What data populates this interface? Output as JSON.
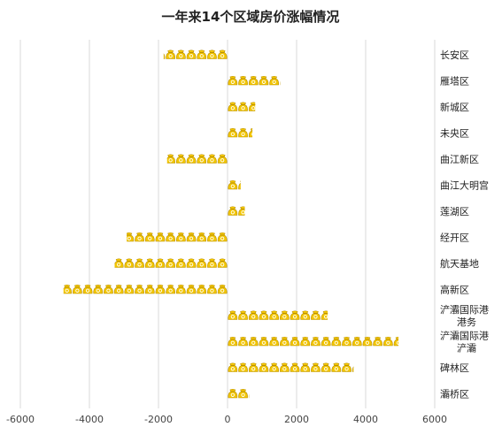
{
  "chart_data": {
    "type": "bar",
    "orientation": "horizontal",
    "title": "一年来14个区域房价涨幅情况",
    "categories": [
      "长安区",
      "雁塔区",
      "新城区",
      "未央区",
      "曲江新区",
      "曲江大明宫",
      "莲湖区",
      "经开区",
      "航天基地",
      "高新区",
      "浐灞国际港港务",
      "浐灞国际港浐灞",
      "碑林区",
      "灞桥区"
    ],
    "category_lines": [
      [
        "长安区"
      ],
      [
        "雁塔区"
      ],
      [
        "新城区"
      ],
      [
        "未央区"
      ],
      [
        "曲江新区"
      ],
      [
        "曲江大明宫"
      ],
      [
        "莲湖区"
      ],
      [
        "经开区"
      ],
      [
        "航天基地"
      ],
      [
        "高新区"
      ],
      [
        "浐灞国际港",
        "港务"
      ],
      [
        "浐灞国际港",
        "浐灞"
      ],
      [
        "碑林区"
      ],
      [
        "灞桥区"
      ]
    ],
    "values": [
      -1850,
      1520,
      800,
      720,
      -1750,
      380,
      500,
      -2920,
      -3270,
      -4750,
      2900,
      4950,
      3650,
      620
    ],
    "xlim": [
      -6000,
      6000
    ],
    "xticks": [
      -6000,
      -4000,
      -2000,
      0,
      2000,
      4000,
      6000
    ],
    "grid": true,
    "marker": "money-bag-icon",
    "marker_unit": 260,
    "colors": {
      "icon": "#f2c500",
      "icon_outline": "#b88f00",
      "grid": "#d9d9d9"
    }
  }
}
